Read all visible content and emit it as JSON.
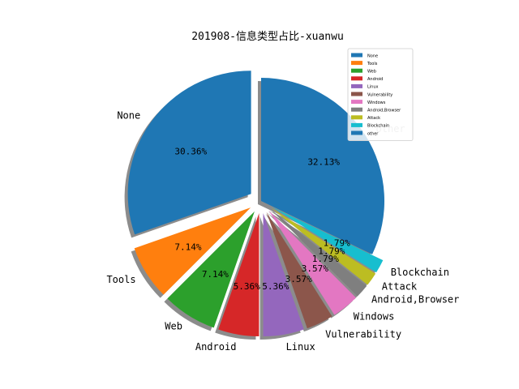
{
  "chart_data": {
    "type": "pie",
    "title": "201908-信息类型占比-xuanwu",
    "categories": [
      "None",
      "Tools",
      "Web",
      "Android",
      "Linux",
      "Vulnerability",
      "Windows",
      "Android,Browser",
      "Attack",
      "Blockchain",
      "other"
    ],
    "values": [
      30.36,
      7.14,
      7.14,
      5.36,
      5.36,
      3.57,
      3.57,
      1.79,
      1.79,
      1.79,
      32.13
    ],
    "percent_labels": [
      "30.36%",
      "7.14%",
      "7.14%",
      "5.36%",
      "5.36%",
      "3.57%",
      "3.57%",
      "1.79%",
      "1.79%",
      "1.79%",
      "32.13%"
    ],
    "colors": [
      "#1f77b4",
      "#ff7f0e",
      "#2ca02c",
      "#d62728",
      "#9467bd",
      "#8c564b",
      "#e377c2",
      "#7f7f7f",
      "#bcbd22",
      "#17becf",
      "#1f77b4"
    ],
    "legend": "top-right",
    "shadow": true
  }
}
